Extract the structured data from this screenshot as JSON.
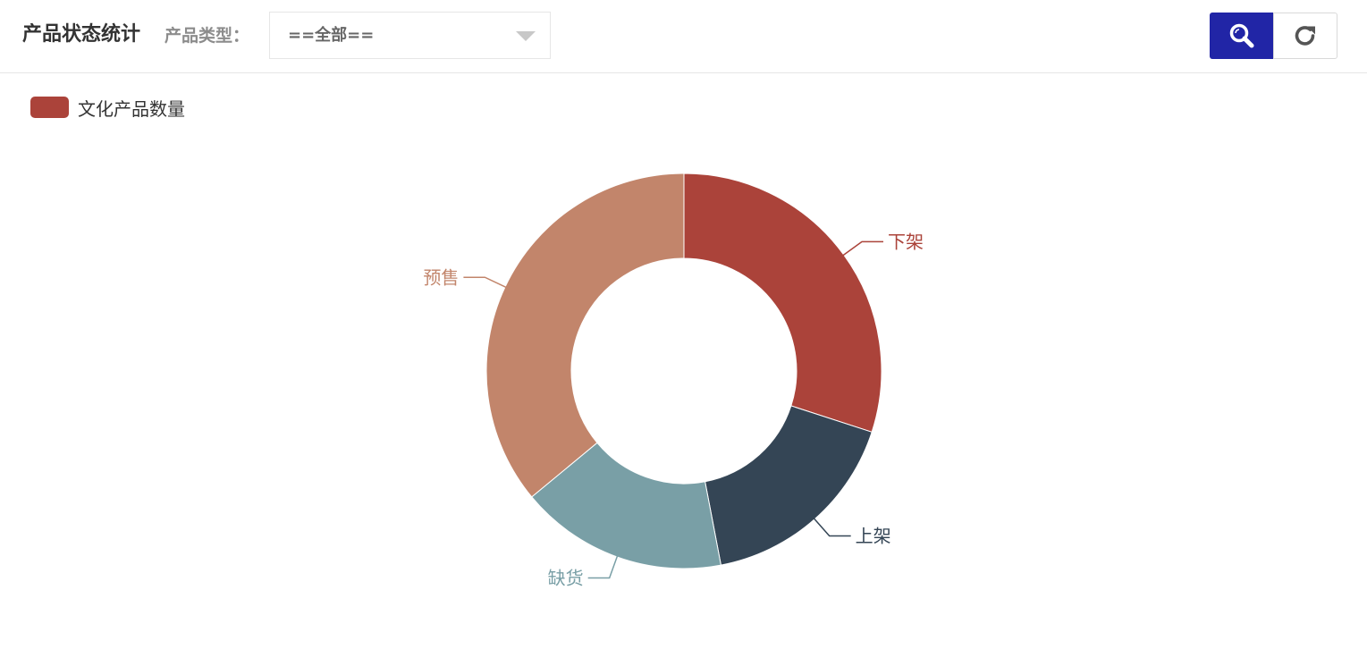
{
  "toolbar": {
    "title": "产品状态统计",
    "filter_label": "产品类型：",
    "select_value": "==全部==",
    "search_icon": "search-icon",
    "refresh_icon": "refresh-icon",
    "accent_color": "#2125a6"
  },
  "legend": {
    "label": "文化产品数量",
    "color": "#ab433a"
  },
  "chart_data": {
    "type": "pie",
    "variant": "donut",
    "series_name": "文化产品数量",
    "legend_position": "top-left",
    "slices": [
      {
        "label": "下架",
        "value": 30,
        "color": "#ab433a"
      },
      {
        "label": "上架",
        "value": 17,
        "color": "#344555"
      },
      {
        "label": "缺货",
        "value": 17,
        "color": "#799fa6"
      },
      {
        "label": "预售",
        "value": 36,
        "color": "#c2856b"
      }
    ]
  }
}
